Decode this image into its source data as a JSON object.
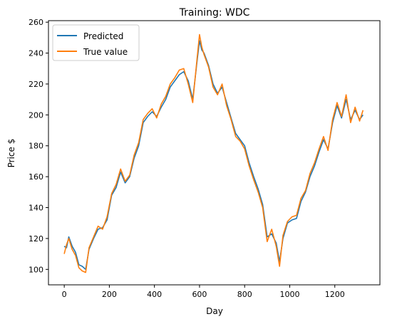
{
  "chart_data": {
    "type": "line",
    "title": "Training: WDC",
    "xlabel": "Day",
    "ylabel": "Price $",
    "xlim": [
      -70,
      1400
    ],
    "ylim": [
      90,
      261
    ],
    "xticks": [
      0,
      200,
      400,
      600,
      800,
      1000,
      1200
    ],
    "yticks": [
      100,
      120,
      140,
      160,
      180,
      200,
      220,
      240,
      260
    ],
    "grid": false,
    "legend_position": "top-left",
    "series": [
      {
        "name": "Predicted",
        "color": "#1f77b4",
        "x": [
          0,
          10,
          20,
          35,
          50,
          65,
          80,
          95,
          110,
          130,
          150,
          170,
          190,
          210,
          230,
          250,
          270,
          290,
          310,
          330,
          350,
          370,
          390,
          410,
          430,
          450,
          470,
          490,
          510,
          530,
          550,
          570,
          590,
          600,
          610,
          620,
          640,
          660,
          680,
          700,
          720,
          740,
          760,
          780,
          800,
          820,
          840,
          860,
          880,
          900,
          920,
          940,
          955,
          970,
          990,
          1010,
          1030,
          1050,
          1070,
          1090,
          1110,
          1130,
          1150,
          1170,
          1190,
          1210,
          1230,
          1250,
          1270,
          1290,
          1310,
          1325
        ],
        "y": [
          115,
          114,
          121,
          115,
          111,
          103,
          102,
          100,
          113,
          120,
          126,
          127,
          132,
          148,
          153,
          163,
          156,
          160,
          172,
          180,
          195,
          199,
          202,
          199,
          205,
          210,
          218,
          222,
          226,
          228,
          222,
          210,
          236,
          248,
          242,
          240,
          232,
          220,
          214,
          218,
          208,
          198,
          188,
          184,
          180,
          169,
          160,
          152,
          142,
          121,
          123,
          117,
          105,
          120,
          130,
          132,
          133,
          144,
          150,
          160,
          167,
          176,
          184,
          178,
          195,
          206,
          198,
          210,
          197,
          203,
          197,
          200
        ]
      },
      {
        "name": "True value",
        "color": "#ff7f0e",
        "x": [
          0,
          10,
          20,
          35,
          50,
          65,
          80,
          95,
          110,
          130,
          150,
          170,
          190,
          210,
          230,
          250,
          270,
          290,
          310,
          330,
          350,
          370,
          390,
          410,
          430,
          450,
          470,
          490,
          510,
          530,
          550,
          570,
          590,
          600,
          610,
          620,
          640,
          660,
          680,
          700,
          720,
          740,
          760,
          780,
          800,
          820,
          840,
          860,
          880,
          900,
          920,
          940,
          955,
          970,
          990,
          1010,
          1030,
          1050,
          1070,
          1090,
          1110,
          1130,
          1150,
          1170,
          1190,
          1210,
          1230,
          1250,
          1270,
          1290,
          1310,
          1325
        ],
        "y": [
          110,
          116,
          120,
          113,
          109,
          101,
          99,
          98,
          114,
          121,
          128,
          126,
          134,
          149,
          155,
          165,
          157,
          161,
          174,
          182,
          197,
          201,
          204,
          198,
          207,
          212,
          220,
          224,
          229,
          230,
          220,
          208,
          238,
          252,
          244,
          239,
          231,
          218,
          213,
          220,
          206,
          197,
          186,
          183,
          178,
          167,
          158,
          150,
          140,
          118,
          126,
          115,
          102,
          122,
          131,
          134,
          135,
          146,
          151,
          162,
          169,
          178,
          186,
          177,
          197,
          208,
          199,
          213,
          195,
          205,
          196,
          203
        ]
      }
    ]
  }
}
